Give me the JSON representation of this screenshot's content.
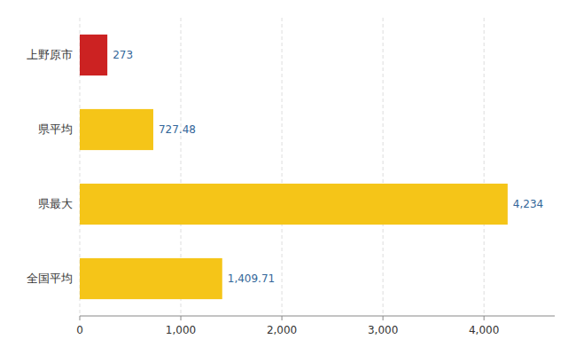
{
  "chart_data": {
    "type": "bar",
    "orientation": "horizontal",
    "categories": [
      "上野原市",
      "県平均",
      "県最大",
      "全国平均"
    ],
    "values": [
      273,
      727.48,
      4234,
      1409.71
    ],
    "value_labels": [
      "273",
      "727.48",
      "4,234",
      "1,409.71"
    ],
    "data_labels": true,
    "colors": [
      "#cc2222",
      "#f5c518",
      "#f5c518",
      "#f5c518"
    ],
    "xlim": [
      0,
      4700
    ],
    "xticks": [
      0,
      {
        "value": 1000,
        "label": "1,000"
      },
      {
        "value": 2000,
        "label": "2,000"
      },
      {
        "value": 3000,
        "label": "3,000"
      },
      {
        "value": 4000,
        "label": "4,000"
      }
    ],
    "grid": true
  }
}
